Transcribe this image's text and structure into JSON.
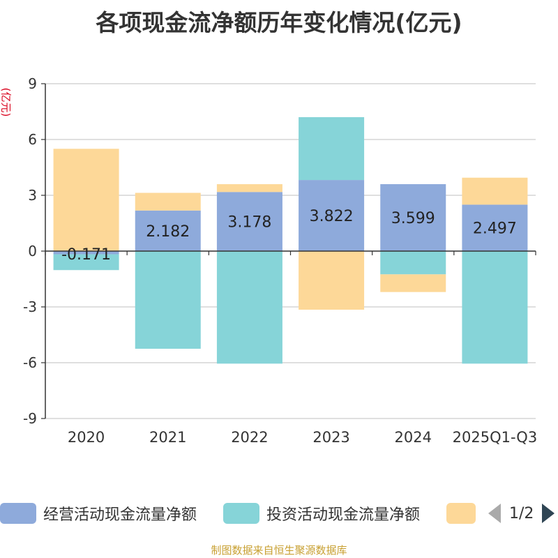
{
  "title": "各项现金流净额历年变化情况(亿元)",
  "unit_label": "(亿元)",
  "source": "制图数据来自恒生聚源数据库",
  "legend": {
    "items": [
      {
        "name": "经营活动现金流量净额",
        "color": "#8eaadb"
      },
      {
        "name": "投资活动现金流量净额",
        "color": "#86d4d8"
      },
      {
        "name": "",
        "color": "#fdd898"
      }
    ],
    "page": "1/2"
  },
  "chart_data": {
    "type": "bar",
    "stacked": true,
    "categories": [
      "2020",
      "2021",
      "2022",
      "2023",
      "2024",
      "2025Q1-Q3"
    ],
    "ylim": [
      -9,
      9
    ],
    "yticks": [
      -9,
      -6,
      -3,
      0,
      3,
      6,
      9
    ],
    "ylabel": "(亿元)",
    "grid": true,
    "legend_position": "bottom",
    "series": [
      {
        "name": "经营活动现金流量净额",
        "color": "#8eaadb",
        "values": [
          -0.171,
          2.182,
          3.178,
          3.822,
          3.599,
          2.497
        ],
        "labels": [
          "-0.171",
          "2.182",
          "3.178",
          "3.822",
          "3.599",
          "2.497"
        ]
      },
      {
        "name": "投资活动现金流量净额",
        "color": "#86d4d8",
        "values": [
          -0.85,
          -5.25,
          -6.05,
          3.38,
          -1.25,
          -6.05
        ]
      },
      {
        "name": "",
        "color": "#fdd898",
        "values": [
          5.5,
          0.95,
          0.42,
          -3.15,
          -0.95,
          1.45
        ]
      }
    ]
  }
}
